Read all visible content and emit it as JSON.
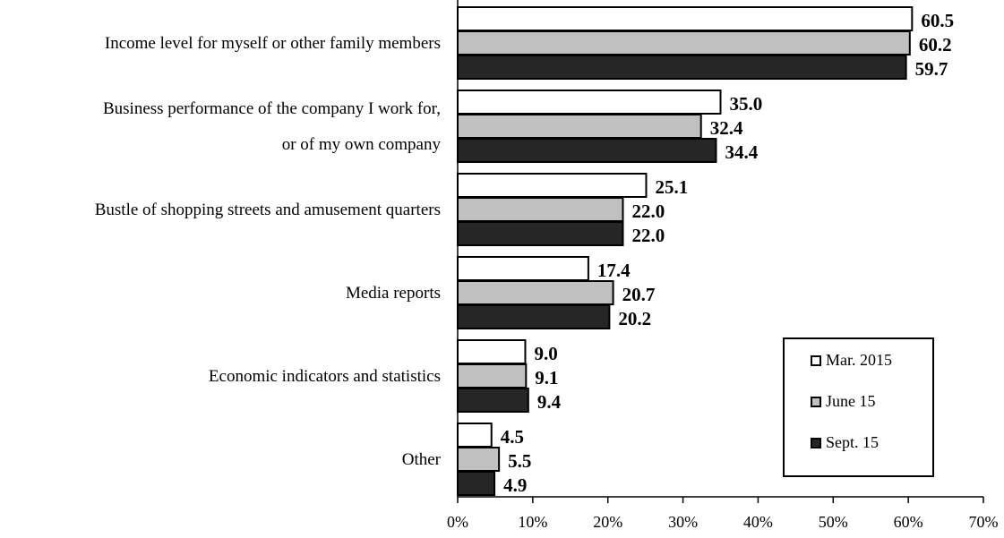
{
  "chart_data": {
    "type": "bar",
    "orientation": "horizontal",
    "categories": [
      "Income level for myself or other family members",
      "Business performance of the company I work for,\nor of my own company",
      "Bustle of shopping streets and amusement quarters",
      "Media reports",
      "Economic indicators and statistics",
      "Other"
    ],
    "series": [
      {
        "name": "Mar. 2015",
        "color": "#ffffff",
        "values": [
          60.5,
          35,
          25.1,
          17.4,
          9,
          4.5
        ],
        "value_labels": [
          "60.5",
          "35.0",
          "25.1",
          "17.4",
          "9.0",
          "4.5"
        ]
      },
      {
        "name": "June 15",
        "color": "#c0c0c0",
        "values": [
          60.2,
          32.4,
          22,
          20.7,
          9.1,
          5.5
        ],
        "value_labels": [
          "60.2",
          "32.4",
          "22.0",
          "20.7",
          "9.1",
          "5.5"
        ]
      },
      {
        "name": "Sept. 15",
        "color": "#262626",
        "values": [
          59.7,
          34.4,
          22,
          20.2,
          9.4,
          4.9
        ],
        "value_labels": [
          "59.7",
          "34.4",
          "22.0",
          "20.2",
          "9.4",
          "4.9"
        ]
      }
    ],
    "xlim": [
      0,
      70
    ],
    "xticks": [
      {
        "value": 0,
        "label": "0%"
      },
      {
        "value": 10,
        "label": "10%"
      },
      {
        "value": 20,
        "label": "20%"
      },
      {
        "value": 30,
        "label": "30%"
      },
      {
        "value": 40,
        "label": "40%"
      },
      {
        "value": 50,
        "label": "50%"
      },
      {
        "value": 60,
        "label": "60%"
      },
      {
        "value": 70,
        "label": "70%"
      }
    ],
    "legend": "lower right"
  }
}
